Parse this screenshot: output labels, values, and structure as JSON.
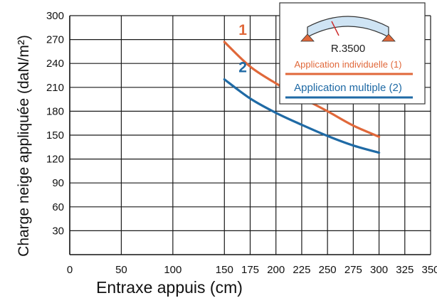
{
  "chart_data": {
    "type": "line",
    "xlabel": "Entraxe appuis (cm)",
    "ylabel": "Charge neige appliquée (daN/m²)",
    "xlim": [
      0,
      350
    ],
    "ylim": [
      0,
      300
    ],
    "xticks": [
      0,
      50,
      100,
      150,
      175,
      200,
      225,
      250,
      275,
      300,
      325,
      350
    ],
    "xtick_labels": [
      "0",
      "50",
      "100",
      "150",
      "175",
      "200",
      "225",
      "250",
      "275",
      "300",
      "325",
      "350"
    ],
    "yticks": [
      30,
      60,
      90,
      120,
      150,
      180,
      210,
      240,
      270,
      300
    ],
    "grid": true,
    "series": [
      {
        "name": "Application individuelle (1)",
        "marker": "1",
        "color": "#e0683a",
        "x": [
          150,
          175,
          200,
          225,
          250,
          275,
          300
        ],
        "y": [
          267,
          236,
          215,
          197,
          180,
          162,
          148
        ]
      },
      {
        "name": "Application multiple (2)",
        "marker": "2",
        "color": "#1f6aa5",
        "x": [
          150,
          175,
          200,
          225,
          250,
          275,
          300
        ],
        "y": [
          220,
          196,
          178,
          163,
          149,
          137,
          128
        ]
      }
    ],
    "legend": {
      "position": "top-right",
      "radius_label": "R.3500"
    }
  }
}
